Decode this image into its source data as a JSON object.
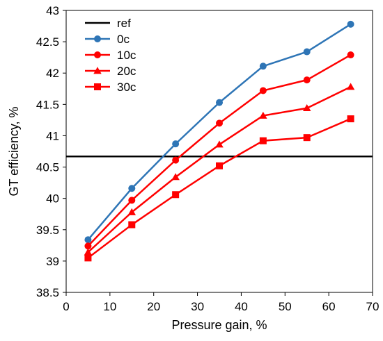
{
  "chart_data": {
    "type": "line",
    "title": "",
    "xlabel": "Pressure gain, %",
    "ylabel": "GT efficiency, %",
    "xlim": [
      0,
      70
    ],
    "ylim": [
      38.5,
      43
    ],
    "xticks": [
      0,
      10,
      20,
      30,
      40,
      50,
      60,
      70
    ],
    "yticks": [
      38.5,
      39,
      39.5,
      40,
      40.5,
      41,
      41.5,
      42,
      42.5,
      43
    ],
    "xtick_labels": [
      "0",
      "10",
      "20",
      "30",
      "40",
      "50",
      "60",
      "70"
    ],
    "ytick_labels": [
      "38.5",
      "39",
      "39.5",
      "40",
      "40.5",
      "41",
      "41.5",
      "42",
      "42.5",
      "43"
    ],
    "grid": false,
    "legend_position": "top-left",
    "x": [
      5,
      15,
      25,
      35,
      45,
      55,
      65
    ],
    "reference": {
      "name": "ref",
      "value": 40.67,
      "color": "#000000"
    },
    "series": [
      {
        "name": "0c",
        "marker": "circle",
        "color": "#2E75B6",
        "values": [
          39.34,
          40.16,
          40.87,
          41.53,
          42.11,
          42.34,
          42.78
        ]
      },
      {
        "name": "10c",
        "marker": "circle",
        "color": "#FF0000",
        "values": [
          39.24,
          39.97,
          40.61,
          41.2,
          41.72,
          41.89,
          42.29
        ]
      },
      {
        "name": "20c",
        "marker": "triangle",
        "color": "#FF0000",
        "values": [
          39.14,
          39.78,
          40.34,
          40.86,
          41.32,
          41.44,
          41.78
        ]
      },
      {
        "name": "30c",
        "marker": "square",
        "color": "#FF0000",
        "values": [
          39.05,
          39.58,
          40.06,
          40.52,
          40.92,
          40.97,
          41.27
        ]
      }
    ]
  }
}
